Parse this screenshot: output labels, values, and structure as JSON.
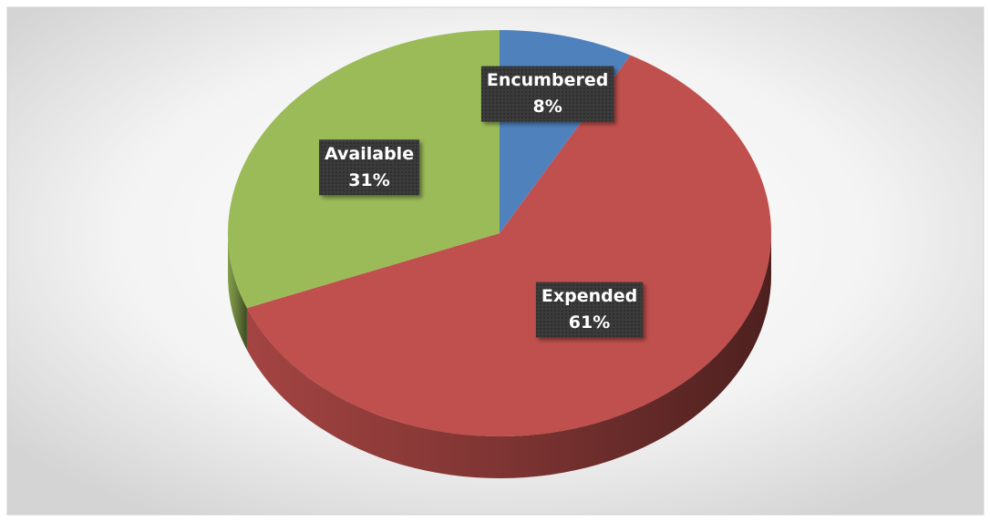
{
  "chart_data": {
    "type": "pie",
    "categories": [
      "Encumbered",
      "Expended",
      "Available"
    ],
    "values": [
      8,
      61,
      31
    ],
    "value_labels": [
      "8%",
      "61%",
      "31%"
    ],
    "colors": [
      "#4f81bd",
      "#c0504d",
      "#9bbb59"
    ]
  }
}
